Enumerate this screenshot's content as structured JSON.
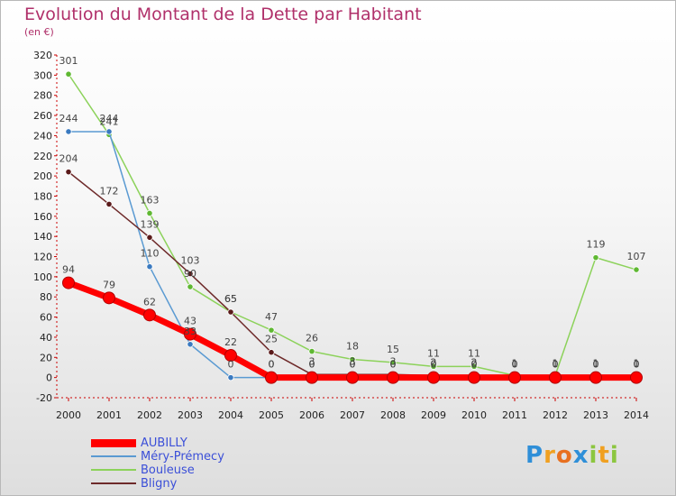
{
  "title": "Evolution du Montant de la Dette par Habitant",
  "subtitle": "(en €)",
  "colors": {
    "title": "#b0306a",
    "legend_text": "#3b4fd8",
    "axis": "#cc0000"
  },
  "logo": {
    "text": "Proxiti",
    "letters": [
      {
        "ch": "P",
        "color": "#2f8fd8"
      },
      {
        "ch": "r",
        "color": "#f0a020"
      },
      {
        "ch": "o",
        "color": "#e87020"
      },
      {
        "ch": "x",
        "color": "#2f8fd8"
      },
      {
        "ch": "i",
        "color": "#8cc63f"
      },
      {
        "ch": "t",
        "color": "#f0a020"
      },
      {
        "ch": "i",
        "color": "#8cc63f"
      }
    ]
  },
  "chart_data": {
    "type": "line",
    "title": "Evolution du Montant de la Dette par Habitant",
    "ylabel": "(en €)",
    "xlabel": "",
    "x": [
      2000,
      2001,
      2002,
      2003,
      2004,
      2005,
      2006,
      2007,
      2008,
      2009,
      2010,
      2011,
      2012,
      2013,
      2014
    ],
    "ylim": [
      -20,
      320
    ],
    "yticks": [
      -20,
      0,
      20,
      40,
      60,
      80,
      100,
      120,
      140,
      160,
      180,
      200,
      220,
      240,
      260,
      280,
      300,
      320
    ],
    "grid": false,
    "legend_position": "bottom-left",
    "series": [
      {
        "name": "Bouleuse",
        "color": "#8cd25a",
        "marker": "#5fb832",
        "width": 1.5,
        "values": [
          301,
          241,
          163,
          90,
          65,
          47,
          26,
          18,
          15,
          11,
          11,
          2,
          2,
          119,
          107
        ],
        "labels": [
          "301",
          "241",
          "163",
          "90",
          "65",
          "47",
          "26",
          "18",
          "15",
          "11",
          "11",
          "",
          "",
          "119",
          "107"
        ]
      },
      {
        "name": "Méry-Prémecy",
        "color": "#5a9ad2",
        "marker": "#3a7ac0",
        "width": 1.5,
        "values": [
          244,
          244,
          110,
          33,
          0,
          0,
          0,
          0,
          0,
          0,
          0,
          0,
          0,
          0,
          0
        ],
        "labels": [
          "244",
          "244",
          "110",
          "33",
          "0",
          "0",
          "0",
          "0",
          "0",
          "0",
          "0",
          "0",
          "0",
          "0",
          "0"
        ]
      },
      {
        "name": "Bligny",
        "color": "#6e2a2a",
        "marker": "#5a1a1a",
        "width": 1.5,
        "values": [
          204,
          172,
          139,
          103,
          65,
          25,
          3,
          3,
          3,
          2,
          2,
          1,
          1,
          1,
          1
        ],
        "labels": [
          "204",
          "172",
          "139",
          "103",
          "65",
          "25",
          "3",
          "3",
          "3",
          "2",
          "2",
          "1",
          "1",
          "1",
          "1"
        ]
      },
      {
        "name": "AUBILLY",
        "color": "#ff0000",
        "marker": "#ff0000",
        "width": 7,
        "values": [
          94,
          79,
          62,
          43,
          22,
          0,
          0,
          0,
          0,
          0,
          0,
          0,
          0,
          0,
          0
        ],
        "labels": [
          "94",
          "79",
          "62",
          "43",
          "22",
          "0",
          "0",
          "0",
          "0",
          "0",
          "0",
          "0",
          "0",
          "0",
          "0"
        ]
      }
    ],
    "legend": [
      {
        "name": "AUBILLY",
        "color": "#ff0000",
        "width": 9
      },
      {
        "name": "Méry-Prémecy",
        "color": "#5a9ad2",
        "width": 2
      },
      {
        "name": "Bouleuse",
        "color": "#8cd25a",
        "width": 2
      },
      {
        "name": "Bligny",
        "color": "#6e2a2a",
        "width": 2
      }
    ]
  }
}
